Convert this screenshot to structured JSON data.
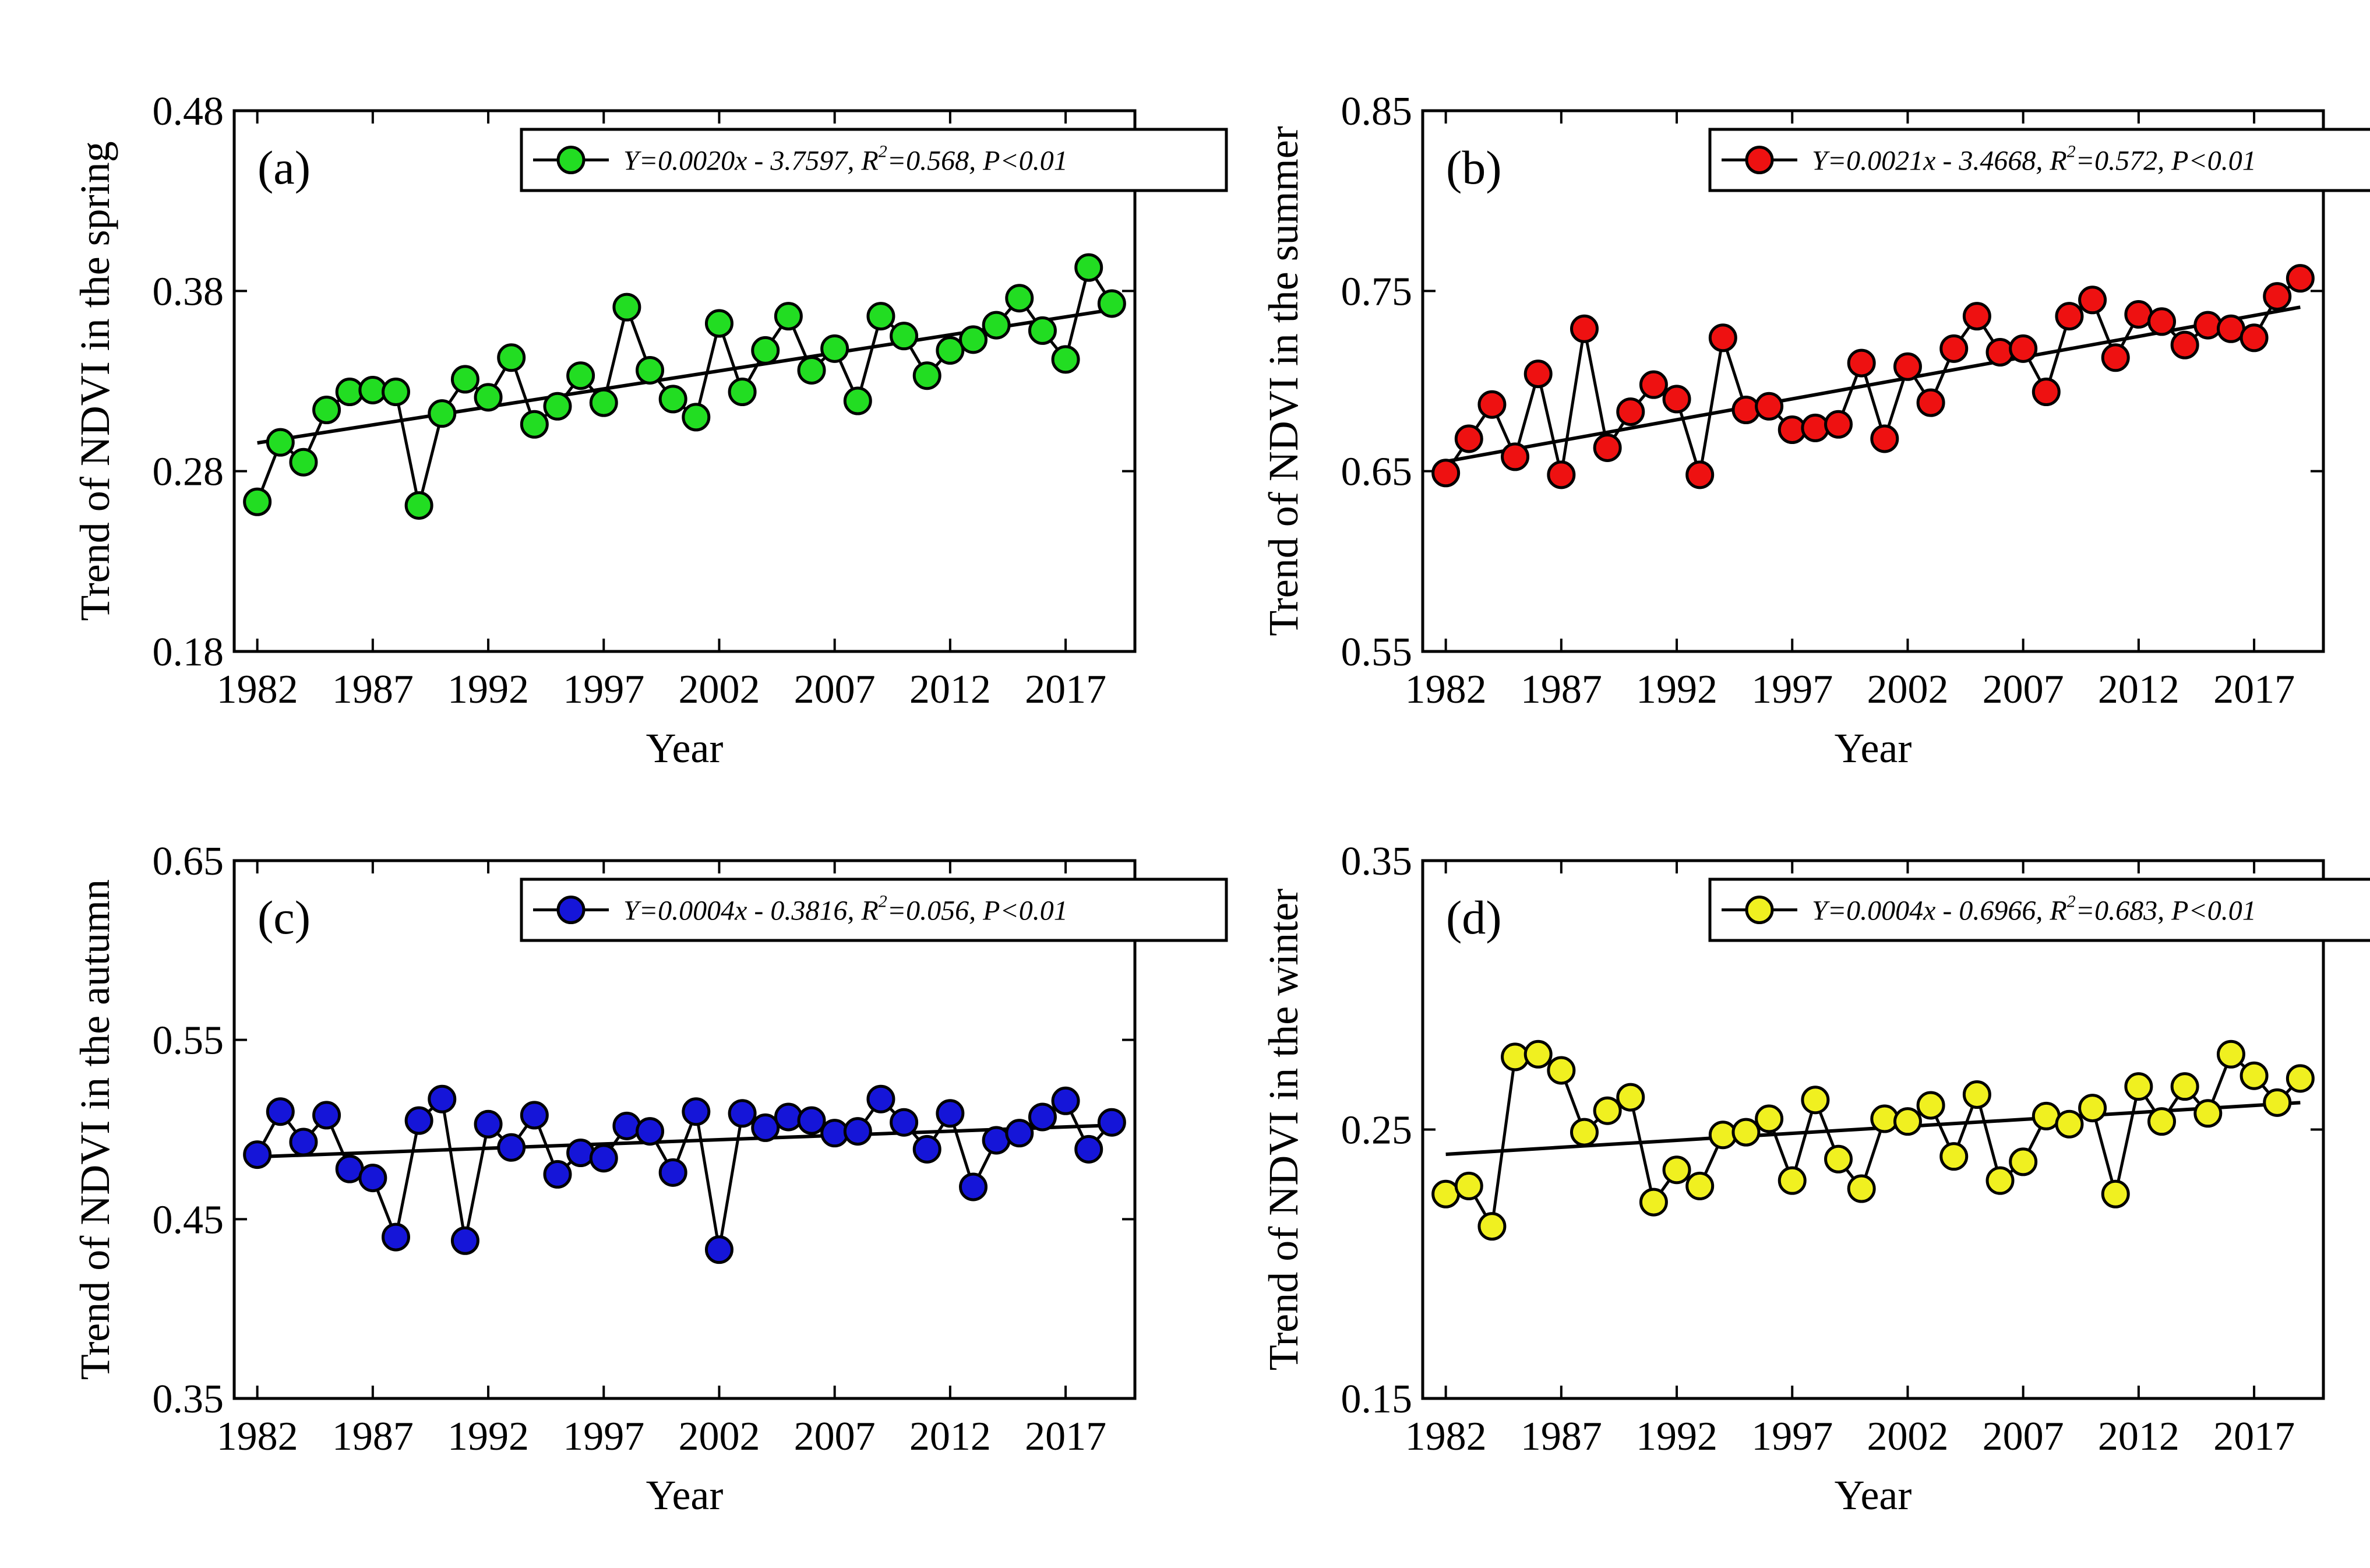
{
  "figure": {
    "panel_count": 4,
    "xlabel": "Year"
  },
  "chart_data": [
    {
      "type": "line",
      "panel_label": "(a)",
      "title": "",
      "xlabel": "Year",
      "ylabel": "Trend of NDVI in the spring",
      "xlim": [
        1981,
        2020
      ],
      "ylim": [
        0.18,
        0.48
      ],
      "xticks": [
        "1982",
        "1987",
        "1992",
        "1997",
        "2002",
        "2007",
        "2012",
        "2017"
      ],
      "yticks": [
        "0.18",
        "0.28",
        "0.38",
        "0.48"
      ],
      "marker_color": "#22dd22",
      "legend": {
        "equation": "Y=0.0020x - 3.7597, ",
        "r_label": "R",
        "r_exponent": "2",
        "r_value": "=0.568, P<0.01",
        "location": "top-right"
      },
      "trend_line": {
        "x": [
          1982,
          2019
        ],
        "y": [
          0.2957,
          0.3696
        ]
      },
      "x": [
        1982,
        1983,
        1984,
        1985,
        1986,
        1987,
        1988,
        1989,
        1990,
        1991,
        1992,
        1993,
        1994,
        1995,
        1996,
        1997,
        1998,
        1999,
        2000,
        2001,
        2002,
        2003,
        2004,
        2005,
        2006,
        2007,
        2008,
        2009,
        2010,
        2011,
        2012,
        2013,
        2014,
        2015,
        2016,
        2017,
        2018,
        2019
      ],
      "y": [
        0.263,
        0.296,
        0.285,
        0.314,
        0.324,
        0.325,
        0.324,
        0.261,
        0.312,
        0.331,
        0.321,
        0.343,
        0.306,
        0.316,
        0.333,
        0.318,
        0.371,
        0.336,
        0.32,
        0.31,
        0.362,
        0.324,
        0.347,
        0.366,
        0.336,
        0.348,
        0.319,
        0.366,
        0.355,
        0.333,
        0.347,
        0.353,
        0.361,
        0.376,
        0.358,
        0.342,
        0.393,
        0.373
      ]
    },
    {
      "type": "line",
      "panel_label": "(b)",
      "title": "",
      "xlabel": "Year",
      "ylabel": "Trend of NDVI in the summer",
      "xlim": [
        1981,
        2020
      ],
      "ylim": [
        0.55,
        0.85
      ],
      "xticks": [
        "1982",
        "1987",
        "1992",
        "1997",
        "2002",
        "2007",
        "2012",
        "2017"
      ],
      "yticks": [
        "0.55",
        "0.65",
        "0.75",
        "0.85"
      ],
      "marker_color": "#ee1111",
      "legend": {
        "equation": "Y=0.0021x - 3.4668, ",
        "r_label": "R",
        "r_exponent": "2",
        "r_value": "=0.572, P<0.01",
        "location": "top-right"
      },
      "trend_line": {
        "x": [
          1982,
          2019
        ],
        "y": [
          0.6554,
          0.741
        ]
      },
      "x": [
        1982,
        1983,
        1984,
        1985,
        1986,
        1987,
        1988,
        1989,
        1990,
        1991,
        1992,
        1993,
        1994,
        1995,
        1996,
        1997,
        1998,
        1999,
        2000,
        2001,
        2002,
        2003,
        2004,
        2005,
        2006,
        2007,
        2008,
        2009,
        2010,
        2011,
        2012,
        2013,
        2014,
        2015,
        2016,
        2017,
        2018,
        2019
      ],
      "y": [
        0.649,
        0.668,
        0.687,
        0.658,
        0.704,
        0.648,
        0.729,
        0.663,
        0.683,
        0.698,
        0.69,
        0.648,
        0.724,
        0.684,
        0.686,
        0.673,
        0.674,
        0.676,
        0.71,
        0.668,
        0.708,
        0.688,
        0.718,
        0.736,
        0.716,
        0.718,
        0.694,
        0.736,
        0.745,
        0.713,
        0.737,
        0.733,
        0.72,
        0.731,
        0.729,
        0.724,
        0.747,
        0.757
      ]
    },
    {
      "type": "line",
      "panel_label": "(c)",
      "title": "",
      "xlabel": "Year",
      "ylabel": "Trend of NDVI in the autumn",
      "xlim": [
        1981,
        2020
      ],
      "ylim": [
        0.35,
        0.65
      ],
      "xticks": [
        "1982",
        "1987",
        "1992",
        "1997",
        "2002",
        "2007",
        "2012",
        "2017"
      ],
      "yticks": [
        "0.35",
        "0.45",
        "0.55",
        "0.65"
      ],
      "marker_color": "#1515d8",
      "legend": {
        "equation": "Y=0.0004x - 0.3816, ",
        "r_label": "R",
        "r_exponent": "2",
        "r_value": "=0.056, P<0.01",
        "location": "top-right"
      },
      "trend_line": {
        "x": [
          1982,
          2019
        ],
        "y": [
          0.4848,
          0.5024
        ]
      },
      "x": [
        1982,
        1983,
        1984,
        1985,
        1986,
        1987,
        1988,
        1989,
        1990,
        1991,
        1992,
        1993,
        1994,
        1995,
        1996,
        1997,
        1998,
        1999,
        2000,
        2001,
        2002,
        2003,
        2004,
        2005,
        2006,
        2007,
        2008,
        2009,
        2010,
        2011,
        2012,
        2013,
        2014,
        2015,
        2016,
        2017,
        2018,
        2019
      ],
      "y": [
        0.486,
        0.51,
        0.493,
        0.508,
        0.478,
        0.473,
        0.44,
        0.505,
        0.517,
        0.438,
        0.503,
        0.49,
        0.508,
        0.475,
        0.487,
        0.484,
        0.502,
        0.499,
        0.476,
        0.51,
        0.433,
        0.509,
        0.501,
        0.507,
        0.505,
        0.498,
        0.499,
        0.517,
        0.504,
        0.489,
        0.509,
        0.468,
        0.494,
        0.498,
        0.507,
        0.516,
        0.489,
        0.504
      ]
    },
    {
      "type": "line",
      "panel_label": "(d)",
      "title": "",
      "xlabel": "Year",
      "ylabel": "Trend of NDVI in the winter",
      "xlim": [
        1981,
        2020
      ],
      "ylim": [
        0.15,
        0.35
      ],
      "xticks": [
        "1982",
        "1987",
        "1992",
        "1997",
        "2002",
        "2007",
        "2012",
        "2017"
      ],
      "yticks": [
        "0.15",
        "0.25",
        "0.35"
      ],
      "marker_color": "#f0f020",
      "legend": {
        "equation": "Y=0.0004x - 0.6966, ",
        "r_label": "R",
        "r_exponent": "2",
        "r_value": "=0.683, P<0.01",
        "location": "top-right"
      },
      "trend_line": {
        "x": [
          1982,
          2019
        ],
        "y": [
          0.2408,
          0.26
        ]
      },
      "x": [
        1982,
        1983,
        1984,
        1985,
        1986,
        1987,
        1988,
        1989,
        1990,
        1991,
        1992,
        1993,
        1994,
        1995,
        1996,
        1997,
        1998,
        1999,
        2000,
        2001,
        2002,
        2003,
        2004,
        2005,
        2006,
        2007,
        2008,
        2009,
        2010,
        2011,
        2012,
        2013,
        2014,
        2015,
        2016,
        2017,
        2018,
        2019
      ],
      "y": [
        0.226,
        0.229,
        0.214,
        0.277,
        0.278,
        0.272,
        0.249,
        0.257,
        0.262,
        0.223,
        0.235,
        0.229,
        0.248,
        0.249,
        0.254,
        0.231,
        0.261,
        0.239,
        0.228,
        0.254,
        0.253,
        0.259,
        0.24,
        0.263,
        0.231,
        0.238,
        0.255,
        0.252,
        0.258,
        0.226,
        0.266,
        0.253,
        0.266,
        0.256,
        0.278,
        0.27,
        0.26,
        0.269
      ]
    }
  ]
}
